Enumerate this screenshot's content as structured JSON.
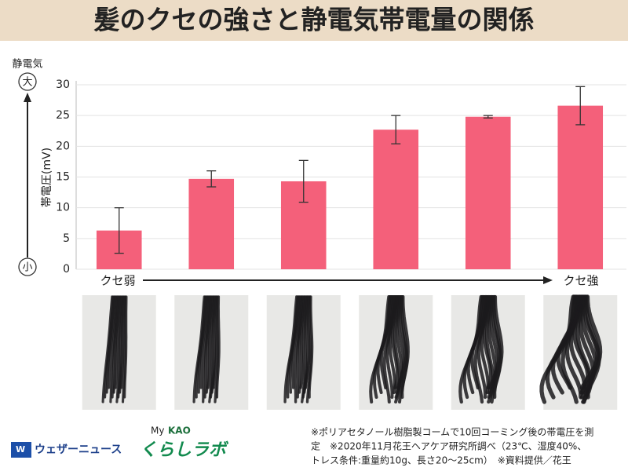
{
  "chart_data": {
    "type": "bar",
    "title": "髪のクセの強さと静電気帯電量の関係",
    "y_label": "帯電圧(mV)",
    "y_axis_caption": "静電気",
    "y_axis_high": "大",
    "y_axis_low": "小",
    "x_axis_low": "クセ弱",
    "x_axis_high": "クセ強",
    "categories": [
      null,
      null,
      null,
      null,
      null,
      null
    ],
    "values": [
      6.3,
      14.7,
      14.3,
      22.7,
      24.8,
      26.6
    ],
    "errors": [
      3.7,
      1.3,
      3.4,
      2.3,
      0.2,
      3.1
    ],
    "color": "#f4607a",
    "ylim": [
      0,
      30
    ],
    "yticks": [
      0,
      5,
      10,
      15,
      20,
      25,
      30
    ],
    "grid": true
  },
  "footnote": [
    "※ポリアセタノール樹脂製コームで10回コーミング後の帯電圧を測",
    "定　※2020年11月花王ヘアケア研究所調べ（23℃、湿度40%、",
    "トレス条件:重量約10g、長さ20～25cm）　※資料提供／花王"
  ],
  "logos": {
    "weathernews": "ウェザーニュース",
    "kao_my": "My",
    "kao_brand": "KAO",
    "kurashi_lab": "くらしラボ"
  }
}
